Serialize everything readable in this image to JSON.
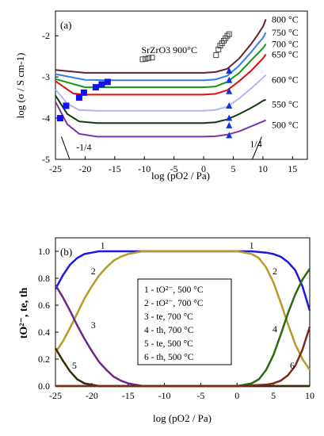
{
  "chart_data": [
    {
      "type": "line",
      "panel_label": "(a)",
      "xlabel": "log (pO2 / Pa)",
      "ylabel": "log (σ / S cm-1)",
      "xlim": [
        -25,
        17.5
      ],
      "ylim": [
        -5,
        -1.4
      ],
      "xticks": [
        -25,
        -20,
        -15,
        -10,
        -5,
        0,
        5,
        10,
        15
      ],
      "yticks": [
        -5,
        -4,
        -3,
        -2
      ],
      "grid": false,
      "legend": "inline labels at right of each curve",
      "series": [
        {
          "name": "800 °C",
          "color": "#6b1f2a",
          "x": [
            -25,
            -20,
            -15,
            -10,
            -5,
            0,
            2,
            4,
            6,
            8,
            9,
            10,
            10.5
          ],
          "y": [
            -2.83,
            -2.9,
            -2.9,
            -2.9,
            -2.9,
            -2.9,
            -2.88,
            -2.8,
            -2.55,
            -2.2,
            -2.0,
            -1.78,
            -1.6
          ]
        },
        {
          "name": "750 °C",
          "color": "#3a7de0",
          "x": [
            -25,
            -20,
            -15,
            -10,
            -5,
            0,
            2,
            4,
            6,
            8,
            9,
            10,
            10.5
          ],
          "y": [
            -2.93,
            -3.07,
            -3.08,
            -3.08,
            -3.08,
            -3.08,
            -3.06,
            -2.97,
            -2.72,
            -2.4,
            -2.22,
            -2.05,
            -1.92
          ]
        },
        {
          "name": "700 °C",
          "color": "#119911",
          "x": [
            -25,
            -20,
            -15,
            -10,
            -5,
            0,
            2,
            4,
            6,
            8,
            9,
            10,
            10.5
          ],
          "y": [
            -3.05,
            -3.25,
            -3.25,
            -3.25,
            -3.25,
            -3.25,
            -3.23,
            -3.12,
            -2.9,
            -2.6,
            -2.45,
            -2.3,
            -2.2
          ]
        },
        {
          "name": "650 °C",
          "color": "#dd1111",
          "x": [
            -25,
            -22,
            -20,
            -15,
            -10,
            -5,
            0,
            2,
            4,
            6,
            8,
            9,
            10,
            10.5
          ],
          "y": [
            -3.1,
            -3.4,
            -3.43,
            -3.43,
            -3.43,
            -3.43,
            -3.43,
            -3.41,
            -3.32,
            -3.1,
            -2.85,
            -2.7,
            -2.55,
            -2.45
          ]
        },
        {
          "name": "600 °C",
          "color": "#b4b6ee",
          "x": [
            -25,
            -23,
            -21,
            -18,
            -15,
            -10,
            -5,
            0,
            2,
            4,
            6,
            8,
            9,
            10,
            10.5
          ],
          "y": [
            -3.3,
            -3.65,
            -3.8,
            -3.82,
            -3.82,
            -3.82,
            -3.82,
            -3.82,
            -3.8,
            -3.72,
            -3.52,
            -3.28,
            -3.15,
            -3.02,
            -2.95
          ]
        },
        {
          "name": "550 °C",
          "color": "#0e3a0e",
          "x": [
            -25,
            -23,
            -21,
            -18,
            -15,
            -10,
            -5,
            0,
            2,
            4,
            6,
            8,
            9,
            10,
            10.5
          ],
          "y": [
            -3.45,
            -3.9,
            -4.08,
            -4.12,
            -4.12,
            -4.12,
            -4.12,
            -4.12,
            -4.1,
            -4.03,
            -3.9,
            -3.75,
            -3.67,
            -3.58,
            -3.55
          ]
        },
        {
          "name": "500 °C",
          "color": "#7a35a8",
          "x": [
            -25,
            -23,
            -21,
            -18,
            -15,
            -10,
            -5,
            0,
            2,
            4,
            6,
            8,
            9,
            10,
            10.5
          ],
          "y": [
            -3.6,
            -4.15,
            -4.38,
            -4.45,
            -4.45,
            -4.45,
            -4.45,
            -4.45,
            -4.44,
            -4.4,
            -4.32,
            -4.2,
            -4.14,
            -4.08,
            -4.05
          ]
        }
      ],
      "markers": [
        {
          "name": "SrZrO3 900°C",
          "shape": "open-square",
          "color": "#444444",
          "x": [
            -10.3,
            -9.8,
            -9.3,
            -8.7,
            2.1,
            2.5,
            2.8,
            3.1,
            3.4,
            3.7,
            4.0,
            4.3
          ],
          "y": [
            -2.57,
            -2.56,
            -2.54,
            -2.53,
            -2.47,
            -2.33,
            -2.24,
            -2.18,
            -2.12,
            -2.06,
            -2.0,
            -1.96
          ]
        },
        {
          "name": "",
          "shape": "filled-square",
          "color": "#1111ee",
          "x": [
            -24.2,
            -23.2,
            -21,
            -20.2,
            -18.2,
            -17.2,
            -16.2
          ],
          "y": [
            -4.0,
            -3.7,
            -3.5,
            -3.38,
            -3.25,
            -3.18,
            -3.12
          ]
        },
        {
          "name": "",
          "shape": "filled-triangle",
          "color": "#1133dd",
          "x": [
            4.3,
            4.3,
            4.3,
            4.3,
            4.3,
            4.3,
            4.3
          ],
          "y": [
            -2.85,
            -3.08,
            -3.35,
            -3.7,
            -4.0,
            -4.18,
            -4.42
          ]
        }
      ],
      "annotations": [
        {
          "text": "SrZrO3 900°C",
          "x": -10.5,
          "y": -2.42
        },
        {
          "text": "-1/4",
          "x": -21.5,
          "y": -4.78
        },
        {
          "text": "1/4",
          "x": 7.8,
          "y": -4.7
        }
      ],
      "slope_guides": [
        {
          "x": [
            -24,
            -22.6
          ],
          "y": [
            -4.45,
            -5.0
          ]
        },
        {
          "x": [
            8.2,
            9.8
          ],
          "y": [
            -5.0,
            -4.45
          ]
        }
      ]
    },
    {
      "type": "line",
      "panel_label": "(b)",
      "xlabel": "log (pO2 / Pa)",
      "ylabel": "tO²⁻, te, th",
      "xlim": [
        -25,
        10
      ],
      "ylim": [
        0,
        1.1
      ],
      "xticks": [
        -25,
        -20,
        -15,
        -10,
        -5,
        0,
        5,
        10
      ],
      "yticks": [
        0,
        0.2,
        0.4,
        0.6,
        0.8,
        1.0
      ],
      "grid": false,
      "legend": "boxed, center",
      "legend_entries": [
        "1 - tO²⁻, 500 °C",
        "2 - tO²⁻, 700 °C",
        "3 - te, 700 °C",
        "4 - th, 700 °C",
        "5 - te, 500 °C",
        "6 - th, 500 °C"
      ],
      "series": [
        {
          "name": "1 - tO²⁻, 500 °C",
          "color": "#1c1ce0",
          "x": [
            -25,
            -24,
            -23,
            -22,
            -21,
            -20,
            -19,
            -18,
            -16,
            -14,
            -10,
            -5,
            0,
            2,
            4,
            5,
            6,
            7,
            8,
            9,
            10
          ],
          "y": [
            0.72,
            0.82,
            0.9,
            0.95,
            0.98,
            0.99,
            1.0,
            1.0,
            1.0,
            1.0,
            1.0,
            1.0,
            1.0,
            1.0,
            0.99,
            0.98,
            0.96,
            0.92,
            0.86,
            0.74,
            0.56
          ]
        },
        {
          "name": "2 - tO²⁻, 700 °C",
          "color": "#b89a2a",
          "x": [
            -25,
            -24,
            -23,
            -22,
            -21,
            -20,
            -19,
            -18,
            -17,
            -16,
            -15,
            -14,
            -13,
            -10,
            -5,
            0,
            1,
            2,
            3,
            4,
            5,
            6,
            7,
            8,
            9,
            10
          ],
          "y": [
            0.25,
            0.33,
            0.43,
            0.54,
            0.65,
            0.74,
            0.82,
            0.88,
            0.93,
            0.96,
            0.98,
            0.99,
            1.0,
            1.0,
            1.0,
            1.0,
            0.99,
            0.98,
            0.95,
            0.88,
            0.77,
            0.62,
            0.46,
            0.31,
            0.2,
            0.12
          ]
        },
        {
          "name": "3 - te, 700 °C",
          "color": "#6a2a8a",
          "x": [
            -25,
            -24,
            -23,
            -22,
            -21,
            -20,
            -19,
            -18,
            -17,
            -16,
            -15,
            -14,
            -13,
            -10,
            -5,
            0,
            5,
            10
          ],
          "y": [
            0.75,
            0.66,
            0.56,
            0.45,
            0.35,
            0.26,
            0.18,
            0.12,
            0.07,
            0.04,
            0.02,
            0.01,
            0.0,
            0.0,
            0.0,
            0.0,
            0.0,
            0.0
          ]
        },
        {
          "name": "4 - th, 700 °C",
          "color": "#2a6a0e",
          "x": [
            -25,
            -15,
            -10,
            -5,
            0,
            1,
            2,
            3,
            4,
            5,
            6,
            7,
            8,
            9,
            10
          ],
          "y": [
            0.0,
            0.0,
            0.0,
            0.0,
            0.0,
            0.01,
            0.02,
            0.05,
            0.12,
            0.23,
            0.38,
            0.54,
            0.68,
            0.79,
            0.87
          ]
        },
        {
          "name": "5 - te, 500 °C",
          "color": "#3a2a08",
          "x": [
            -25,
            -24,
            -23,
            -22,
            -21,
            -20,
            -19,
            -18,
            -17,
            -15,
            -10,
            0,
            10
          ],
          "y": [
            0.28,
            0.19,
            0.11,
            0.05,
            0.02,
            0.01,
            0.0,
            0.0,
            0.0,
            0.0,
            0.0,
            0.0,
            0.0
          ]
        },
        {
          "name": "6 - th, 500 °C",
          "color": "#7a2a1a",
          "x": [
            -25,
            -10,
            0,
            4,
            5,
            6,
            7,
            8,
            9,
            10
          ],
          "y": [
            0.0,
            0.0,
            0.0,
            0.01,
            0.02,
            0.04,
            0.08,
            0.15,
            0.27,
            0.44
          ]
        }
      ],
      "curve_labels": [
        {
          "text": "1",
          "x": -18.5,
          "y": 1.02
        },
        {
          "text": "1",
          "x": 2.0,
          "y": 1.02
        },
        {
          "text": "2",
          "x": -19.8,
          "y": 0.83
        },
        {
          "text": "2",
          "x": 5.2,
          "y": 0.83
        },
        {
          "text": "3",
          "x": -19.8,
          "y": 0.43
        },
        {
          "text": "4",
          "x": 5.2,
          "y": 0.4
        },
        {
          "text": "5",
          "x": -22.4,
          "y": 0.13
        },
        {
          "text": "6",
          "x": 7.6,
          "y": 0.13
        }
      ]
    }
  ]
}
